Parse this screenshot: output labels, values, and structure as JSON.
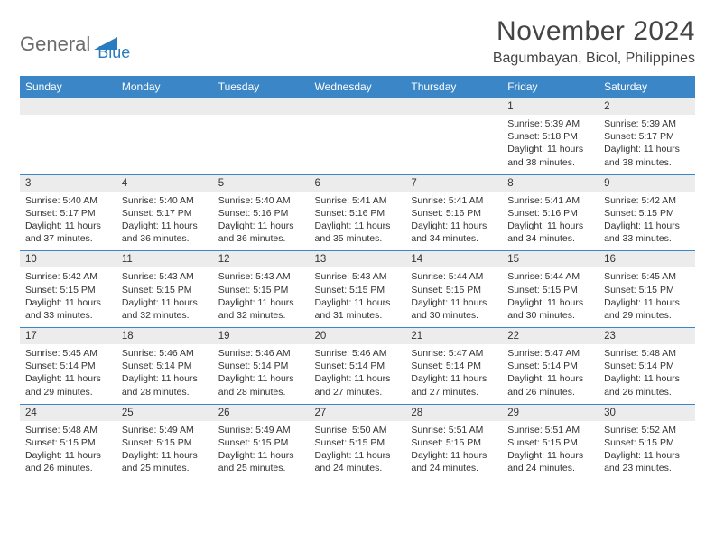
{
  "logo": {
    "part1": "General",
    "part2": "Blue"
  },
  "title": "November 2024",
  "location": "Bagumbayan, Bicol, Philippines",
  "colors": {
    "header_bg": "#3b86c6",
    "header_text": "#ffffff",
    "daynum_bg": "#ececec",
    "border": "#3b86c6",
    "logo_gray": "#6b6b6b",
    "logo_blue": "#2b7bbf",
    "text": "#333333"
  },
  "weekdays": [
    "Sunday",
    "Monday",
    "Tuesday",
    "Wednesday",
    "Thursday",
    "Friday",
    "Saturday"
  ],
  "weeks": [
    [
      null,
      null,
      null,
      null,
      null,
      {
        "d": "1",
        "sr": "5:39 AM",
        "ss": "5:18 PM",
        "dl": "11 hours and 38 minutes."
      },
      {
        "d": "2",
        "sr": "5:39 AM",
        "ss": "5:17 PM",
        "dl": "11 hours and 38 minutes."
      }
    ],
    [
      {
        "d": "3",
        "sr": "5:40 AM",
        "ss": "5:17 PM",
        "dl": "11 hours and 37 minutes."
      },
      {
        "d": "4",
        "sr": "5:40 AM",
        "ss": "5:17 PM",
        "dl": "11 hours and 36 minutes."
      },
      {
        "d": "5",
        "sr": "5:40 AM",
        "ss": "5:16 PM",
        "dl": "11 hours and 36 minutes."
      },
      {
        "d": "6",
        "sr": "5:41 AM",
        "ss": "5:16 PM",
        "dl": "11 hours and 35 minutes."
      },
      {
        "d": "7",
        "sr": "5:41 AM",
        "ss": "5:16 PM",
        "dl": "11 hours and 34 minutes."
      },
      {
        "d": "8",
        "sr": "5:41 AM",
        "ss": "5:16 PM",
        "dl": "11 hours and 34 minutes."
      },
      {
        "d": "9",
        "sr": "5:42 AM",
        "ss": "5:15 PM",
        "dl": "11 hours and 33 minutes."
      }
    ],
    [
      {
        "d": "10",
        "sr": "5:42 AM",
        "ss": "5:15 PM",
        "dl": "11 hours and 33 minutes."
      },
      {
        "d": "11",
        "sr": "5:43 AM",
        "ss": "5:15 PM",
        "dl": "11 hours and 32 minutes."
      },
      {
        "d": "12",
        "sr": "5:43 AM",
        "ss": "5:15 PM",
        "dl": "11 hours and 32 minutes."
      },
      {
        "d": "13",
        "sr": "5:43 AM",
        "ss": "5:15 PM",
        "dl": "11 hours and 31 minutes."
      },
      {
        "d": "14",
        "sr": "5:44 AM",
        "ss": "5:15 PM",
        "dl": "11 hours and 30 minutes."
      },
      {
        "d": "15",
        "sr": "5:44 AM",
        "ss": "5:15 PM",
        "dl": "11 hours and 30 minutes."
      },
      {
        "d": "16",
        "sr": "5:45 AM",
        "ss": "5:15 PM",
        "dl": "11 hours and 29 minutes."
      }
    ],
    [
      {
        "d": "17",
        "sr": "5:45 AM",
        "ss": "5:14 PM",
        "dl": "11 hours and 29 minutes."
      },
      {
        "d": "18",
        "sr": "5:46 AM",
        "ss": "5:14 PM",
        "dl": "11 hours and 28 minutes."
      },
      {
        "d": "19",
        "sr": "5:46 AM",
        "ss": "5:14 PM",
        "dl": "11 hours and 28 minutes."
      },
      {
        "d": "20",
        "sr": "5:46 AM",
        "ss": "5:14 PM",
        "dl": "11 hours and 27 minutes."
      },
      {
        "d": "21",
        "sr": "5:47 AM",
        "ss": "5:14 PM",
        "dl": "11 hours and 27 minutes."
      },
      {
        "d": "22",
        "sr": "5:47 AM",
        "ss": "5:14 PM",
        "dl": "11 hours and 26 minutes."
      },
      {
        "d": "23",
        "sr": "5:48 AM",
        "ss": "5:14 PM",
        "dl": "11 hours and 26 minutes."
      }
    ],
    [
      {
        "d": "24",
        "sr": "5:48 AM",
        "ss": "5:15 PM",
        "dl": "11 hours and 26 minutes."
      },
      {
        "d": "25",
        "sr": "5:49 AM",
        "ss": "5:15 PM",
        "dl": "11 hours and 25 minutes."
      },
      {
        "d": "26",
        "sr": "5:49 AM",
        "ss": "5:15 PM",
        "dl": "11 hours and 25 minutes."
      },
      {
        "d": "27",
        "sr": "5:50 AM",
        "ss": "5:15 PM",
        "dl": "11 hours and 24 minutes."
      },
      {
        "d": "28",
        "sr": "5:51 AM",
        "ss": "5:15 PM",
        "dl": "11 hours and 24 minutes."
      },
      {
        "d": "29",
        "sr": "5:51 AM",
        "ss": "5:15 PM",
        "dl": "11 hours and 24 minutes."
      },
      {
        "d": "30",
        "sr": "5:52 AM",
        "ss": "5:15 PM",
        "dl": "11 hours and 23 minutes."
      }
    ]
  ],
  "labels": {
    "sunrise": "Sunrise:",
    "sunset": "Sunset:",
    "daylight": "Daylight:"
  }
}
